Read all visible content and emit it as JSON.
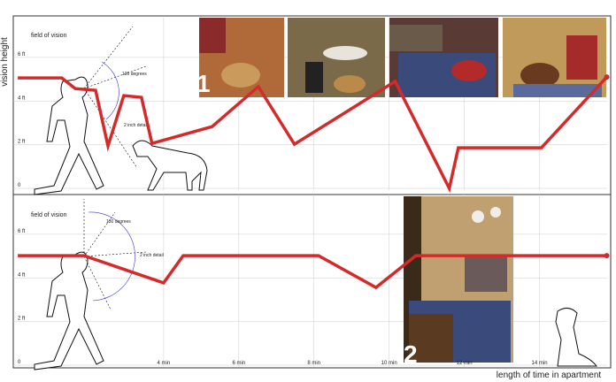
{
  "chart_data": [
    {
      "type": "line",
      "y_label": "vision height",
      "annotations": [
        "field of vision",
        "130 degrees",
        "2 inch detail",
        "1"
      ],
      "x": [
        0.12,
        1.29,
        1.65,
        2.19,
        2.52,
        2.94,
        3.41,
        3.69,
        5.29,
        6.52,
        7.48,
        10.16,
        11.6,
        11.84,
        14.05,
        15.79
      ],
      "values": [
        5.06,
        5.06,
        4.57,
        4.49,
        1.94,
        4.25,
        4.17,
        2.06,
        2.83,
        4.66,
        2.02,
        4.9,
        0,
        1.86,
        1.86,
        5.1
      ],
      "color": "#d42a2a",
      "xlim": [
        0,
        15.8
      ],
      "ylim": [
        0,
        7.9
      ],
      "yticks": [
        0,
        {
          "value": 2,
          "label": "2 ft"
        },
        {
          "value": 4,
          "label": "4 ft"
        },
        {
          "value": 6,
          "label": "6 ft"
        }
      ],
      "grid": true
    },
    {
      "type": "line",
      "x_label": "length of time in apartment",
      "annotations": [
        "field of vision",
        "130 degrees",
        "2 inch detail",
        "2"
      ],
      "x": [
        0.12,
        1.88,
        4,
        4.52,
        8.12,
        9.65,
        10.71,
        15.79
      ],
      "values": [
        5.02,
        5.02,
        3.77,
        5.02,
        5.02,
        3.56,
        5.02,
        5.02
      ],
      "color": "#d42a2a",
      "xlim": [
        0,
        15.8
      ],
      "ylim": [
        0,
        7.9
      ],
      "xticks": [
        {
          "value": 4,
          "label": "4 min"
        },
        {
          "value": 6,
          "label": "6 min"
        },
        {
          "value": 8,
          "label": "8 min"
        },
        {
          "value": 10,
          "label": "10 min"
        },
        {
          "value": 12,
          "label": "12 min"
        },
        {
          "value": 14,
          "label": "14 min"
        }
      ],
      "yticks": [
        0,
        {
          "value": 2,
          "label": "2 ft"
        },
        {
          "value": 4,
          "label": "4 ft"
        },
        {
          "value": 6,
          "label": "6 ft"
        }
      ],
      "grid": true
    }
  ]
}
